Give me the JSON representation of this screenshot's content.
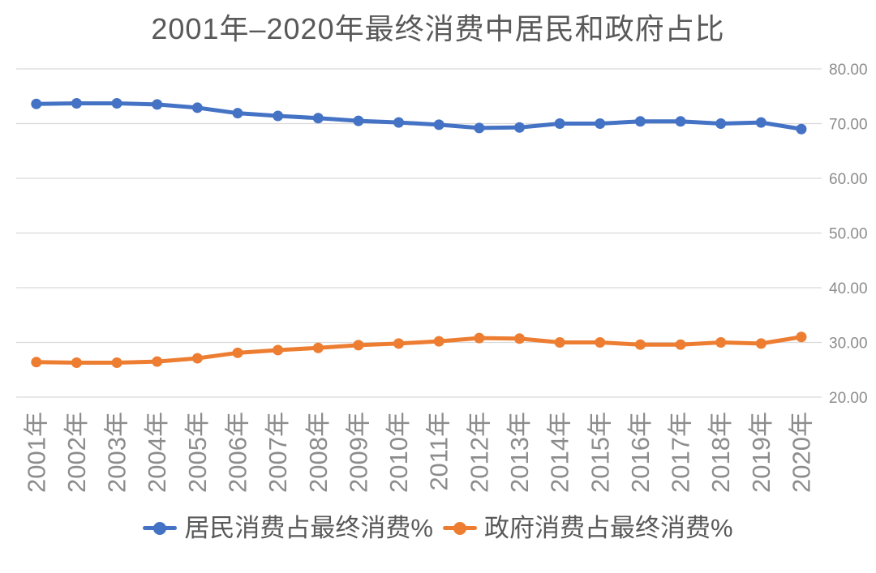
{
  "title": "2001年–2020年最终消费中居民和政府占比",
  "chart_data": {
    "type": "line",
    "title": "2001年–2020年最终消费中居民和政府占比",
    "categories": [
      "2001年",
      "2002年",
      "2003年",
      "2004年",
      "2005年",
      "2006年",
      "2007年",
      "2008年",
      "2009年",
      "2010年",
      "2011年",
      "2012年",
      "2013年",
      "2014年",
      "2015年",
      "2016年",
      "2017年",
      "2018年",
      "2019年",
      "2020年"
    ],
    "series": [
      {
        "name": "居民消费占最终消费%",
        "color": "#4472C4",
        "values": [
          73.6,
          73.7,
          73.7,
          73.5,
          72.9,
          71.9,
          71.4,
          71.0,
          70.5,
          70.2,
          69.8,
          69.2,
          69.3,
          70.0,
          70.0,
          70.4,
          70.4,
          70.0,
          70.2,
          69.0
        ]
      },
      {
        "name": "政府消费占最终消费%",
        "color": "#ED7D31",
        "values": [
          26.4,
          26.3,
          26.3,
          26.5,
          27.1,
          28.1,
          28.6,
          29.0,
          29.5,
          29.8,
          30.2,
          30.8,
          30.7,
          30.0,
          30.0,
          29.6,
          29.6,
          30.0,
          29.8,
          31.0
        ]
      }
    ],
    "ylim": [
      20,
      80
    ],
    "yticks": [
      20,
      30,
      40,
      50,
      60,
      70,
      80
    ],
    "ytick_labels": [
      "20.00",
      "30.00",
      "40.00",
      "50.00",
      "60.00",
      "70.00",
      "80.00"
    ],
    "grid": true,
    "legend_position": "bottom",
    "colors": {
      "gridline": "#D9D9D9",
      "axis_label": "#8C8C8C",
      "title": "#595959",
      "legend_label": "#595959"
    }
  }
}
